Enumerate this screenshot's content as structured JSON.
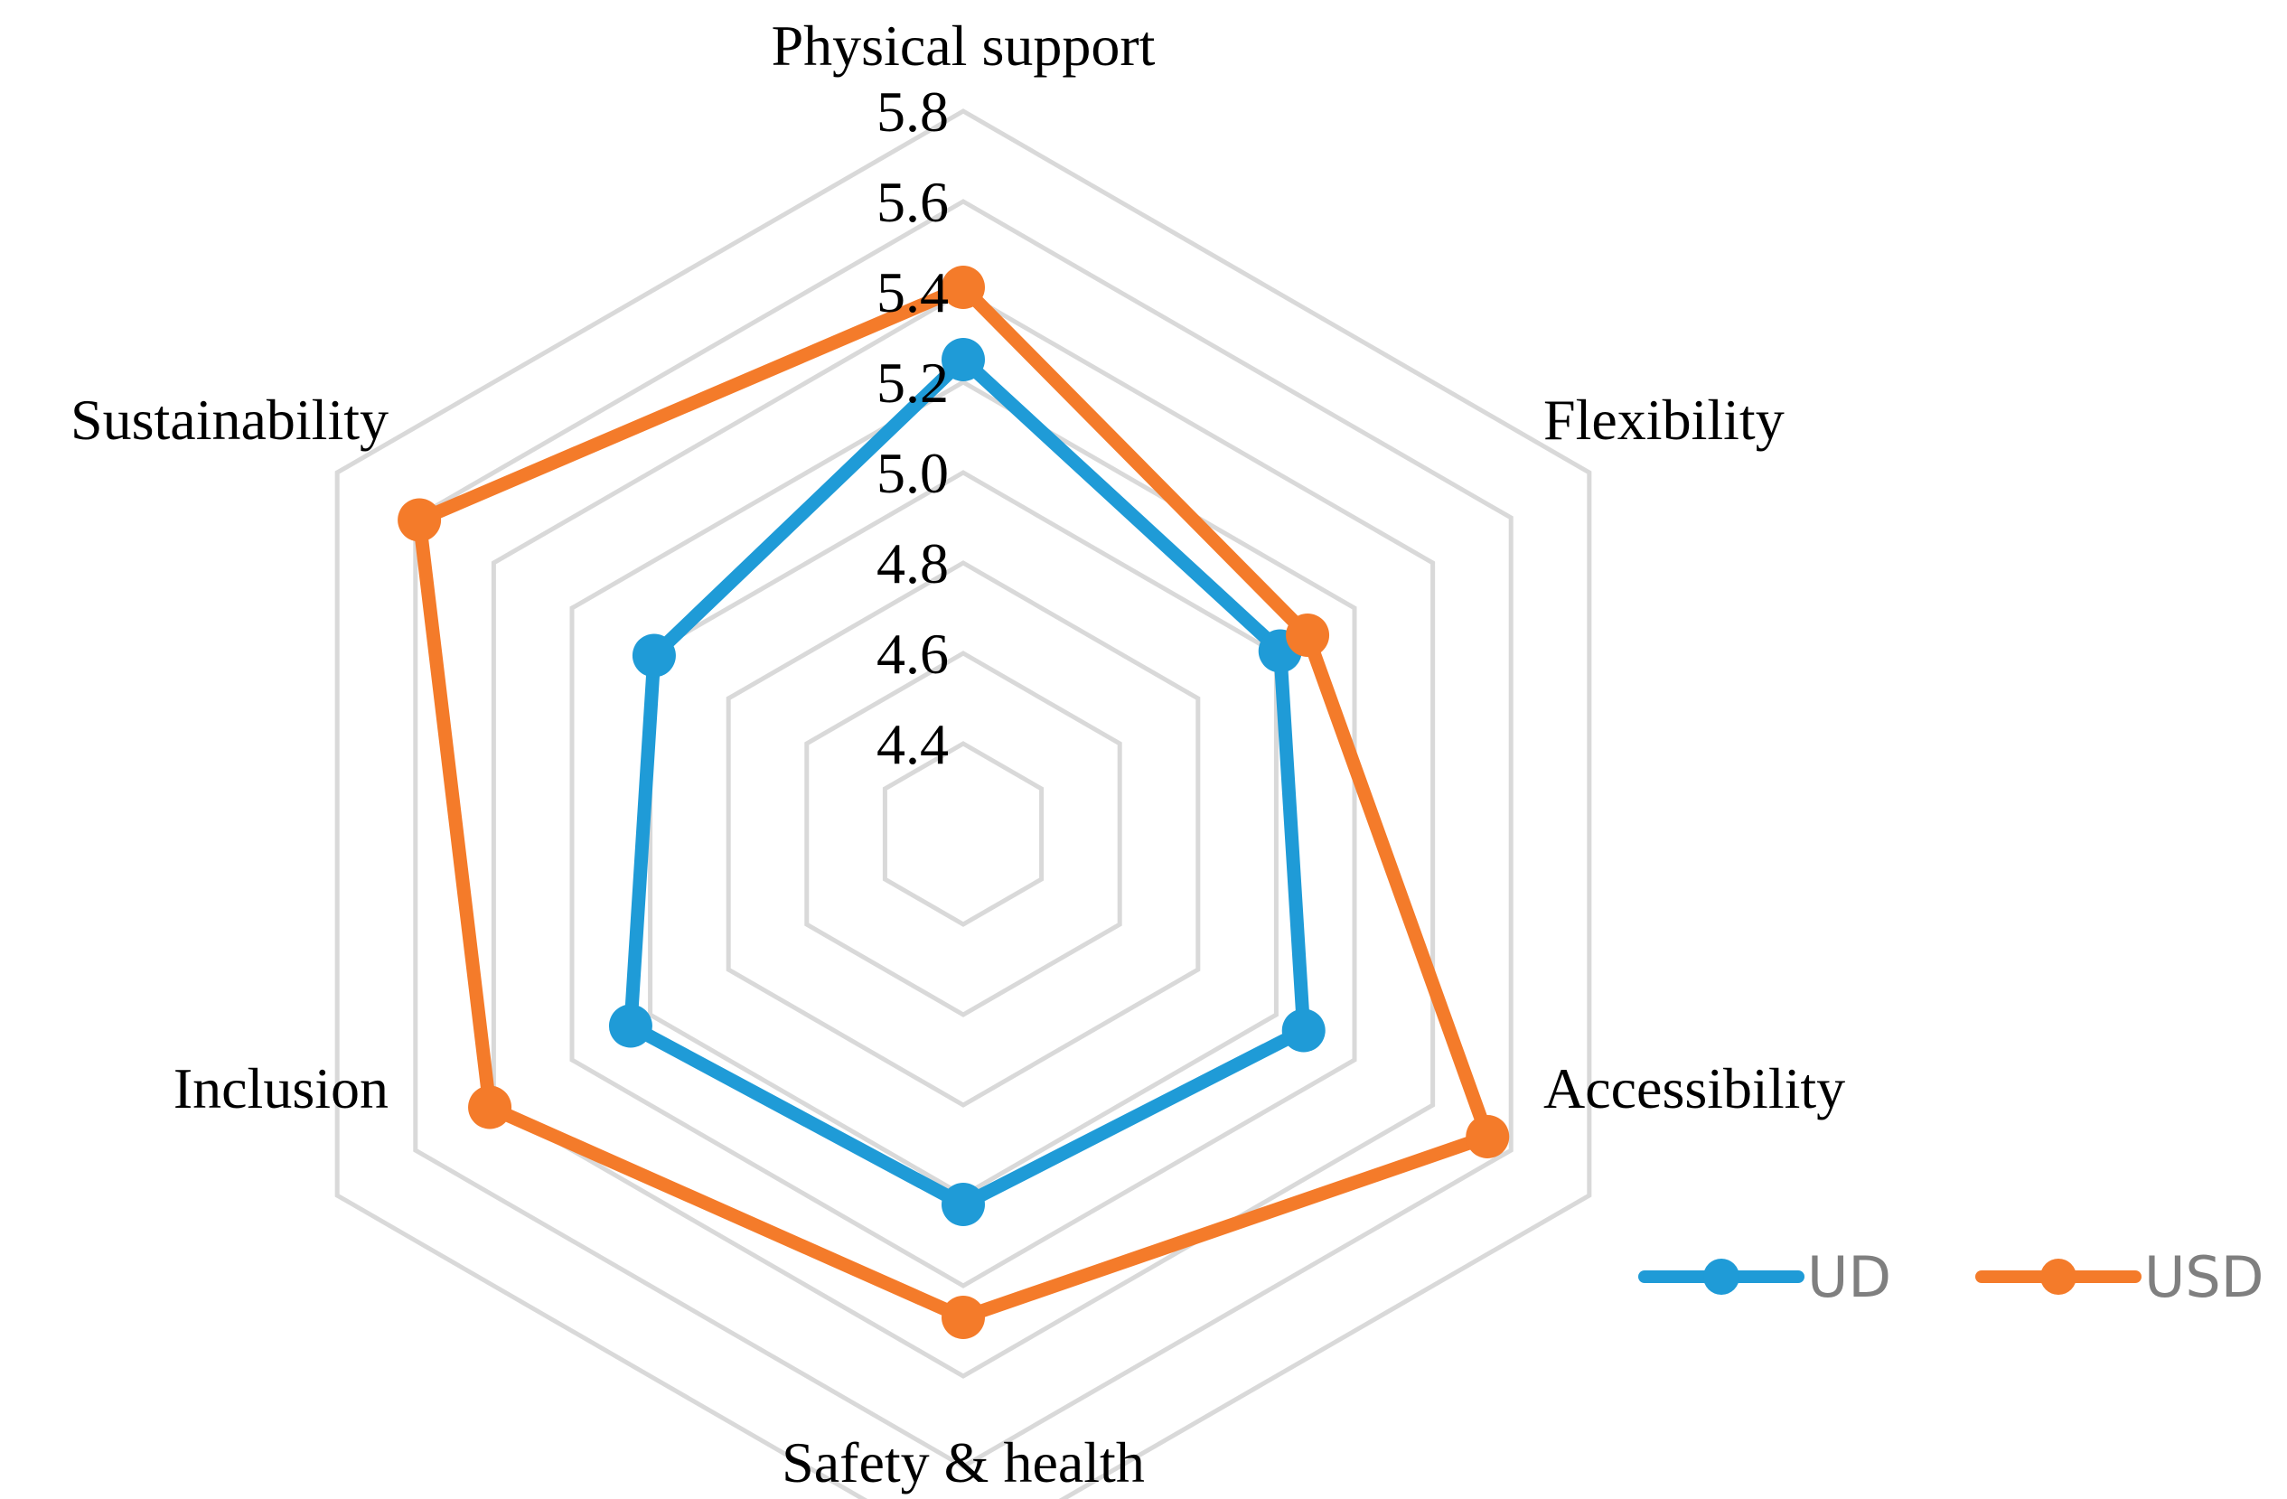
{
  "chart_data": {
    "type": "radar",
    "categories": [
      "Physical support",
      "Flexibility",
      "Accessibility",
      "Safety & health",
      "Inclusion",
      "Sustainability"
    ],
    "rlim": [
      4.4,
      5.8
    ],
    "ticks": [
      "4.4",
      "4.6",
      "4.8",
      "5.0",
      "5.2",
      "5.4",
      "5.6",
      "5.8"
    ],
    "grid": true,
    "legend_position": "bottom-right",
    "series": [
      {
        "name": "UD",
        "color": "#1f9bd7",
        "values": [
          5.25,
          5.01,
          5.07,
          5.02,
          5.05,
          4.99
        ]
      },
      {
        "name": "USD",
        "color": "#f47b2a",
        "values": [
          5.41,
          5.08,
          5.54,
          5.27,
          5.41,
          5.59
        ]
      }
    ]
  }
}
